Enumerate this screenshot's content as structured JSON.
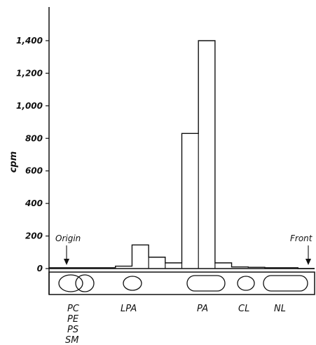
{
  "chart_data": {
    "type": "bar",
    "ylabel": "cpm",
    "ylim": [
      0,
      1400
    ],
    "yticks": [
      0,
      200,
      400,
      600,
      800,
      1000,
      1200,
      1400
    ],
    "ytick_labels": [
      "0",
      "200",
      "400",
      "600",
      "800",
      "1,000",
      "1,200",
      "1,400"
    ],
    "values": [
      5,
      5,
      5,
      5,
      15,
      145,
      70,
      35,
      830,
      1400,
      35,
      10,
      8,
      5,
      5,
      0
    ],
    "annotations": [
      "Origin",
      "Front"
    ],
    "lanes": [
      {
        "lines": [
          "PC",
          "PE",
          "PS",
          "SM"
        ]
      },
      {
        "lines": [
          "LPA"
        ]
      },
      {
        "lines": [
          "PA"
        ]
      },
      {
        "lines": [
          "CL"
        ]
      },
      {
        "lines": [
          "NL"
        ]
      }
    ]
  }
}
